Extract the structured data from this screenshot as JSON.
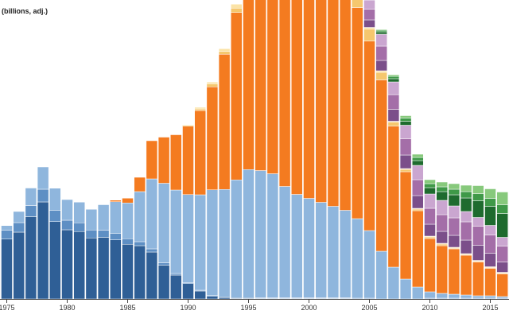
{
  "chart_data": {
    "type": "bar",
    "stacked": true,
    "y_unit_label": "(billions, adj.)",
    "x_tick_labels": [
      "1975",
      "1980",
      "1985",
      "1990",
      "1995",
      "2000",
      "2005",
      "2010",
      "2015"
    ],
    "colors": {
      "s1": "#2f5f96",
      "s2": "#5e8fc4",
      "s3": "#8fb6dd",
      "s4": "#f47b20",
      "s5": "#f5c76e",
      "s6": "#fbe3a6",
      "s7": "#7b4f8a",
      "s8": "#a46ea8",
      "s9": "#caa6d0",
      "s10": "#1e6b2e",
      "s11": "#3f9948",
      "s12": "#87c97c"
    },
    "categories": [
      1974,
      1975,
      1976,
      1977,
      1978,
      1979,
      1980,
      1981,
      1982,
      1983,
      1984,
      1985,
      1986,
      1987,
      1988,
      1989,
      1990,
      1991,
      1992,
      1993,
      1994,
      1995,
      1996,
      1997,
      1998,
      1999,
      2000,
      2001,
      2002,
      2003,
      2004,
      2005,
      2006,
      2007,
      2008,
      2009,
      2010,
      2011,
      2012,
      2013,
      2014,
      2015,
      2016,
      2017
    ],
    "series": [
      {
        "key": "s1",
        "values": [
          30.5,
          30.1,
          33.6,
          41.4,
          48.8,
          38.9,
          34.8,
          33.9,
          30.7,
          31.0,
          29.7,
          27.5,
          26.8,
          23.6,
          17.0,
          12.0,
          7.7,
          4.0,
          1.3,
          0.7,
          0.3,
          0.3,
          0.2,
          0.2,
          0.2,
          0.2,
          0.2,
          0.2,
          0.2,
          0.2,
          0,
          0,
          0,
          0,
          0,
          0,
          0,
          0,
          0,
          0,
          0,
          0,
          0,
          0
        ]
      },
      {
        "key": "s2",
        "values": [
          4.4,
          4.4,
          4.8,
          5.6,
          6.4,
          5.6,
          4.8,
          4.4,
          4.0,
          3.6,
          3.2,
          2.8,
          2.0,
          1.6,
          1.2,
          0.8,
          0.4,
          0.4,
          0.4,
          0.4,
          0.4,
          0.4,
          0.4,
          0.4,
          0.4,
          0.4,
          0.4,
          0.4,
          0.4,
          0.4,
          0.4,
          0.4,
          0,
          0,
          0,
          0,
          0.4,
          0.4,
          0.4,
          0.4,
          0.4,
          0.4,
          0.4,
          0.4
        ]
      },
      {
        "key": "s3",
        "values": [
          2.0,
          2.4,
          5.6,
          8.8,
          11.2,
          11.2,
          10.4,
          10.4,
          10.4,
          12.8,
          16.0,
          18.0,
          25.2,
          35.2,
          40.0,
          42.0,
          44.4,
          48.0,
          53.2,
          54.0,
          59.2,
          64.4,
          64.0,
          62.4,
          56.0,
          52.0,
          50.0,
          48.0,
          46.0,
          44.0,
          40.0,
          34.0,
          24.0,
          16.0,
          10.0,
          6.0,
          3.2,
          2.4,
          2.0,
          1.6,
          1.2,
          1.2,
          0.8,
          0.8
        ]
      },
      {
        "key": "s4",
        "values": [
          0,
          0,
          0,
          0,
          0,
          0,
          0,
          0,
          0,
          0,
          0.8,
          2.4,
          7.2,
          19.2,
          23.2,
          27.8,
          34.4,
          42.4,
          51.8,
          68.0,
          84.2,
          98.0,
          109.6,
          117.6,
          124.2,
          130.6,
          130.4,
          124.4,
          118.6,
          112.2,
          106.2,
          95.4,
          86.2,
          71.0,
          54.0,
          38.4,
          26.8,
          24.0,
          22.8,
          20.0,
          17.0,
          13.8,
          11.4,
          8.0
        ]
      },
      {
        "key": "s5",
        "values": [
          0,
          0,
          0,
          0,
          0,
          0,
          0,
          0,
          0,
          0,
          0,
          0,
          0,
          0,
          0,
          0,
          0.4,
          0.8,
          1.4,
          1.4,
          2.2,
          2.6,
          2.6,
          3.4,
          5.6,
          6.0,
          4.8,
          4.0,
          2.8,
          2.0,
          5.4,
          6.0,
          3.8,
          2.0,
          1.2,
          0.8,
          0.8,
          0.8,
          0.4,
          0.4,
          0.4,
          0.4,
          0.4,
          0.4
        ]
      },
      {
        "key": "s6",
        "values": [
          0,
          0,
          0,
          0,
          0,
          0,
          0,
          0,
          0,
          0,
          0,
          0,
          0,
          0,
          0,
          0,
          0.4,
          0.8,
          1.0,
          1.4,
          2.0,
          2.0,
          2.0,
          2.0,
          2.0,
          2.0,
          2.0,
          1.6,
          1.4,
          1.2,
          1.0,
          0.8,
          0.8,
          0.4,
          0.4,
          0.4,
          0.4,
          0.4,
          0.4,
          0.4,
          0.4,
          0.4,
          0.4,
          0.4
        ]
      },
      {
        "key": "s7",
        "values": [
          0,
          0,
          0,
          0,
          0,
          0,
          0,
          0,
          0,
          0,
          0,
          0,
          0,
          0,
          0,
          0,
          0,
          0,
          0,
          0,
          0,
          0,
          0,
          0,
          0,
          0,
          0,
          0,
          0,
          0,
          0.4,
          3.8,
          5.2,
          6.0,
          6.8,
          6.4,
          6.0,
          6.0,
          6.0,
          6.8,
          7.6,
          6.8,
          5.2,
          4.8
        ]
      },
      {
        "key": "s8",
        "values": [
          0,
          0,
          0,
          0,
          0,
          0,
          0,
          0,
          0,
          0,
          0,
          0,
          0,
          0,
          0,
          0,
          0,
          0,
          0,
          0,
          0,
          0,
          0,
          0,
          0,
          0,
          0,
          0,
          0,
          0,
          0.4,
          5.4,
          7.2,
          7.4,
          8.2,
          8.0,
          8.0,
          8.4,
          8.8,
          9.2,
          9.6,
          9.2,
          8.0,
          7.2
        ]
      },
      {
        "key": "s9",
        "values": [
          0,
          0,
          0,
          0,
          0,
          0,
          0,
          0,
          0,
          0,
          0,
          0,
          0,
          0,
          0,
          0,
          0,
          0,
          0,
          0,
          0,
          0,
          0,
          0,
          0,
          0,
          0,
          0,
          0,
          0,
          0.4,
          4.6,
          6.0,
          6.4,
          6.8,
          7.2,
          7.2,
          7.2,
          6.0,
          5.2,
          4.4,
          4.8,
          4.4,
          4.0
        ]
      },
      {
        "key": "s10",
        "values": [
          0,
          0,
          0,
          0,
          0,
          0,
          0,
          0,
          0,
          0,
          0,
          0,
          0,
          0,
          0,
          0,
          0,
          0,
          0,
          0,
          0,
          0,
          0,
          0,
          0,
          0,
          0,
          0,
          0,
          0,
          0.2,
          0.8,
          1.2,
          1.6,
          2.0,
          2.4,
          3.2,
          4.4,
          5.6,
          6.8,
          8.4,
          9.6,
          12.0,
          12.0
        ]
      },
      {
        "key": "s11",
        "values": [
          0,
          0,
          0,
          0,
          0,
          0,
          0,
          0,
          0,
          0,
          0,
          0,
          0,
          0,
          0,
          0,
          0,
          0,
          0,
          0,
          0,
          0,
          0,
          0,
          0,
          0,
          0,
          0,
          0,
          0,
          0,
          0.4,
          0.8,
          1.2,
          1.6,
          1.6,
          2.0,
          2.4,
          2.8,
          3.2,
          3.6,
          4.0,
          4.4,
          4.8
        ]
      },
      {
        "key": "s12",
        "values": [
          0,
          0,
          0,
          0,
          0,
          0,
          0,
          0,
          0,
          0,
          0,
          0,
          0,
          0,
          0,
          0,
          0,
          0,
          0,
          0,
          0,
          0,
          0,
          0,
          0,
          0,
          0,
          0,
          0,
          0,
          0,
          0.2,
          0.4,
          0.8,
          1.2,
          1.6,
          2.0,
          2.4,
          2.8,
          3.2,
          4.0,
          4.8,
          6.4,
          6.8
        ]
      }
    ]
  }
}
